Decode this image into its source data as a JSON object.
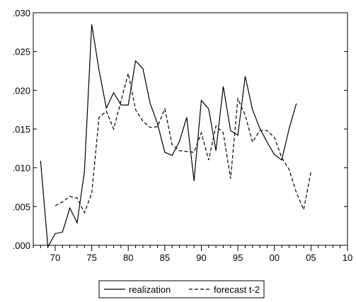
{
  "chart_data": {
    "type": "line",
    "title": "",
    "xlabel": "",
    "ylabel": "",
    "xlim": [
      1967,
      2010
    ],
    "ylim": [
      0,
      0.03
    ],
    "x_ticks": [
      1970,
      1975,
      1980,
      1985,
      1990,
      1995,
      2000,
      2005,
      2010
    ],
    "x_tick_labels": [
      "70",
      "75",
      "80",
      "85",
      "90",
      "95",
      "00",
      "05",
      "10"
    ],
    "y_ticks": [
      0,
      0.005,
      0.01,
      0.015,
      0.02,
      0.025,
      0.03
    ],
    "y_tick_labels": [
      ".000",
      ".005",
      ".010",
      ".015",
      ".020",
      ".025",
      ".030"
    ],
    "grid": false,
    "legend_position": "bottom-center",
    "series": [
      {
        "name": "realization",
        "style": "solid",
        "color": "#000000",
        "x": [
          1968,
          1969,
          1970,
          1971,
          1972,
          1973,
          1974,
          1975,
          1976,
          1977,
          1978,
          1979,
          1980,
          1981,
          1982,
          1983,
          1984,
          1985,
          1986,
          1987,
          1988,
          1989,
          1990,
          1991,
          1992,
          1993,
          1994,
          1995,
          1996,
          1997,
          1998,
          1999,
          2000,
          2001,
          2002,
          2003
        ],
        "y": [
          0.0109,
          -0.0002,
          0.0015,
          0.0017,
          0.0048,
          0.0029,
          0.0095,
          0.0285,
          0.0226,
          0.0177,
          0.0197,
          0.0181,
          0.0181,
          0.0238,
          0.0228,
          0.0183,
          0.0157,
          0.012,
          0.0116,
          0.0134,
          0.0165,
          0.0083,
          0.0187,
          0.0176,
          0.0122,
          0.0205,
          0.0148,
          0.0142,
          0.0218,
          0.0175,
          0.0151,
          0.0133,
          0.0117,
          0.011,
          0.015,
          0.0183
        ]
      },
      {
        "name": "forecast t-2",
        "style": "dashed",
        "color": "#000000",
        "x": [
          1970,
          1971,
          1972,
          1973,
          1974,
          1975,
          1976,
          1977,
          1978,
          1979,
          1980,
          1981,
          1982,
          1983,
          1984,
          1985,
          1986,
          1987,
          1988,
          1989,
          1990,
          1991,
          1992,
          1993,
          1994,
          1995,
          1996,
          1997,
          1998,
          1999,
          2000,
          2001,
          2002,
          2003,
          2004,
          2005
        ],
        "y": [
          0.0051,
          0.0056,
          0.0063,
          0.0061,
          0.0042,
          0.0067,
          0.0165,
          0.0173,
          0.015,
          0.0186,
          0.0222,
          0.0175,
          0.016,
          0.0152,
          0.0153,
          0.0176,
          0.013,
          0.0122,
          0.0121,
          0.012,
          0.0145,
          0.011,
          0.0154,
          0.0145,
          0.0086,
          0.0189,
          0.0168,
          0.0133,
          0.0148,
          0.0148,
          0.0139,
          0.0113,
          0.0098,
          0.0068,
          0.0046,
          0.0095
        ]
      }
    ]
  }
}
